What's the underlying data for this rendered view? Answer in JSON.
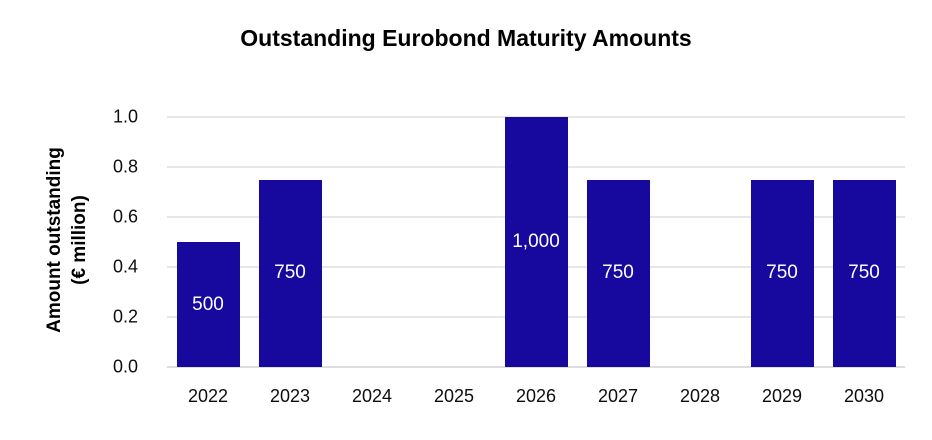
{
  "chart_data": {
    "type": "bar",
    "title": "Outstanding Eurobond Maturity Amounts",
    "categories": [
      "2022",
      "2023",
      "2024",
      "2025",
      "2026",
      "2027",
      "2028",
      "2029",
      "2030"
    ],
    "values": [
      500,
      750,
      0,
      0,
      1000,
      750,
      0,
      750,
      750
    ],
    "axis_values": [
      0.5,
      0.75,
      0,
      0,
      1.0,
      0.75,
      0,
      0.75,
      0.75
    ],
    "bar_labels": [
      "500",
      "750",
      "",
      "",
      "1,000",
      "750",
      "",
      "750",
      "750"
    ],
    "xlabel": "",
    "ylabel_line1": "Amount outstanding",
    "ylabel_line2": "(€ million)",
    "yticks": [
      "0.0",
      "0.2",
      "0.4",
      "0.6",
      "0.8",
      "1.0"
    ],
    "ylim": [
      0.0,
      1.0
    ],
    "grid": "horizontal",
    "legend": "none",
    "bar_value_unit": "€ million"
  },
  "colors": {
    "bar": "#17089E",
    "gridline": "#E7E7E7",
    "axis_line": "#DEDEDE",
    "bar_label_text": "#FFFFFF",
    "tick_text": "#0D0D0D",
    "title_text": "#000000",
    "background": "#FFFFFF"
  }
}
